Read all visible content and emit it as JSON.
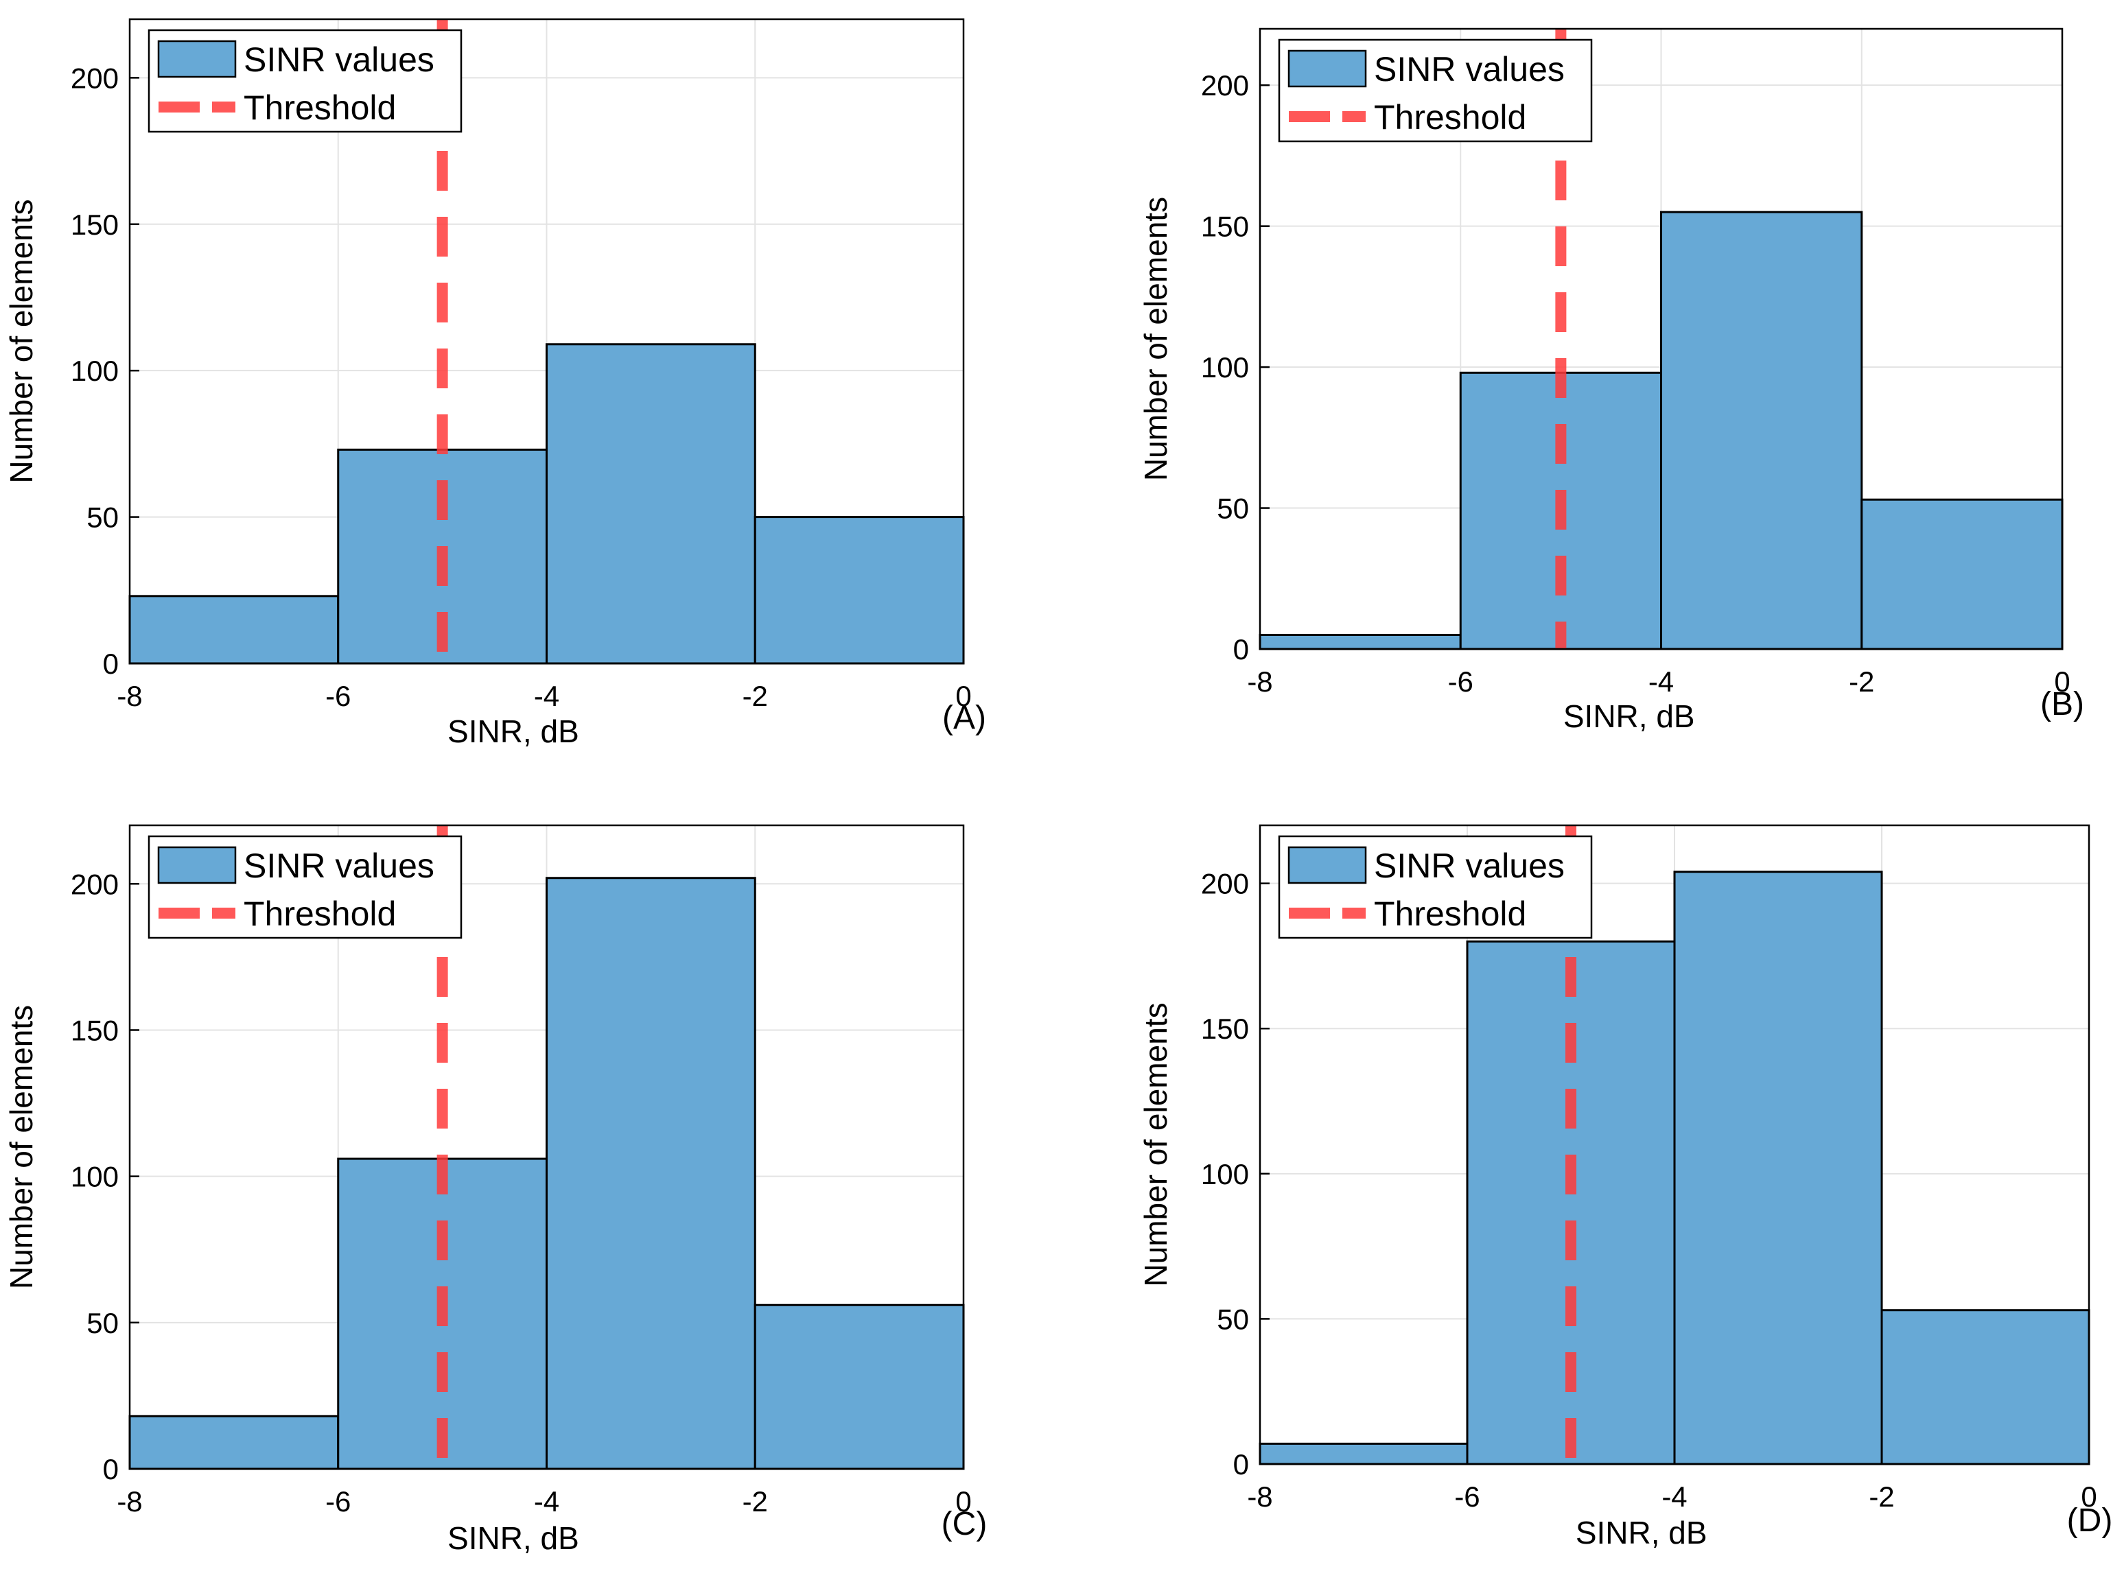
{
  "colors": {
    "bar_fill": "#67a9d6",
    "bar_edge": "#000000",
    "threshold": "#ff3b3b",
    "grid": "#e3e3e3",
    "axis": "#000000"
  },
  "chart_data": [
    {
      "panel": "(A)",
      "type": "bar",
      "bin_edges": [
        -8,
        -6,
        -4,
        -2,
        0
      ],
      "values": [
        23,
        73,
        109,
        50
      ],
      "threshold_x": -5,
      "xlabel": "SINR, dB",
      "ylabel": "Number of elements",
      "xlim": [
        -8,
        0
      ],
      "ylim": [
        0,
        220
      ],
      "xticks": [
        -8,
        -6,
        -4,
        -2,
        0
      ],
      "yticks": [
        0,
        50,
        100,
        150,
        200
      ],
      "legend": [
        "SINR values",
        "Threshold"
      ],
      "legend_position": "top-left",
      "grid": true
    },
    {
      "panel": "(B)",
      "type": "bar",
      "bin_edges": [
        -8,
        -6,
        -4,
        -2,
        0
      ],
      "values": [
        5,
        98,
        155,
        53
      ],
      "threshold_x": -5,
      "xlabel": "SINR, dB",
      "ylabel": "Number of elements",
      "xlim": [
        -8,
        0
      ],
      "ylim": [
        0,
        220
      ],
      "xticks": [
        -8,
        -6,
        -4,
        -2,
        0
      ],
      "yticks": [
        0,
        50,
        100,
        150,
        200
      ],
      "legend": [
        "SINR values",
        "Threshold"
      ],
      "legend_position": "top-left",
      "grid": true
    },
    {
      "panel": "(C)",
      "type": "bar",
      "bin_edges": [
        -8,
        -6,
        -4,
        -2,
        0
      ],
      "values": [
        18,
        106,
        202,
        56
      ],
      "threshold_x": -5,
      "xlabel": "SINR, dB",
      "ylabel": "Number of elements",
      "xlim": [
        -8,
        0
      ],
      "ylim": [
        0,
        220
      ],
      "xticks": [
        -8,
        -6,
        -4,
        -2,
        0
      ],
      "yticks": [
        0,
        50,
        100,
        150,
        200
      ],
      "legend": [
        "SINR values",
        "Threshold"
      ],
      "legend_position": "top-left",
      "grid": true
    },
    {
      "panel": "(D)",
      "type": "bar",
      "bin_edges": [
        -8,
        -6,
        -4,
        -2,
        0
      ],
      "values": [
        7,
        180,
        204,
        53
      ],
      "threshold_x": -5,
      "xlabel": "SINR, dB",
      "ylabel": "Number of elements",
      "xlim": [
        -8,
        0
      ],
      "ylim": [
        0,
        220
      ],
      "xticks": [
        -8,
        -6,
        -4,
        -2,
        0
      ],
      "yticks": [
        0,
        50,
        100,
        150,
        200
      ],
      "legend": [
        "SINR values",
        "Threshold"
      ],
      "legend_position": "top-left",
      "grid": true
    }
  ]
}
